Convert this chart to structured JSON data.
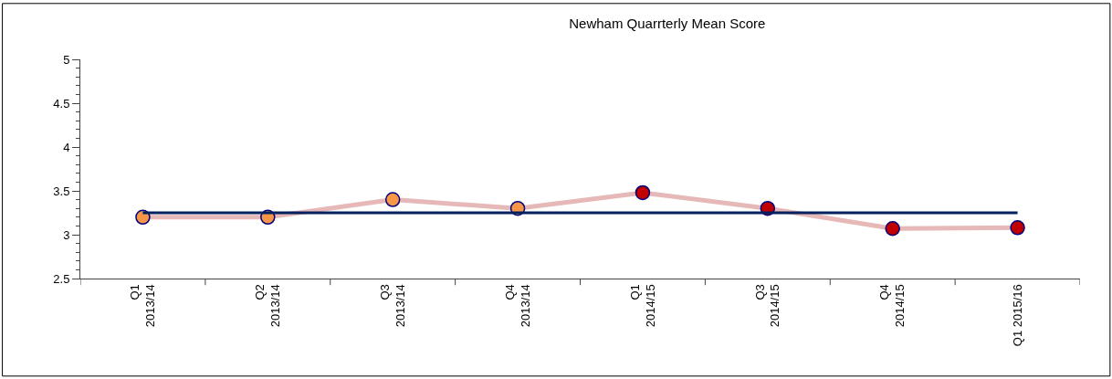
{
  "chart_data": {
    "type": "line",
    "title": "Newham Quarrterly Mean Score",
    "categories": [
      "Q1\n2013/14",
      "Q2\n2013/14",
      "Q3\n2013/14",
      "Q4\n2013/14",
      "Q1\n2014/15",
      "Q3\n2014/15",
      "Q4\n2014/15",
      "Q1 2015/16"
    ],
    "series": [
      {
        "color": "#e6b8b7",
        "values": [
          3.2,
          3.2,
          3.4,
          3.3,
          3.48,
          3.3,
          3.07,
          3.08
        ],
        "colors": [
          "#f79646",
          "#f79646",
          "#f79646",
          "#f79646",
          "#c00000",
          "#c00000",
          "#c00000",
          "#c00000"
        ]
      }
    ],
    "ref_lines": [
      {
        "axis": "y",
        "value": 3.25,
        "color": "#002060"
      }
    ],
    "ylim": [
      2.5,
      5
    ],
    "yticks": [
      2.5,
      3,
      3.5,
      4,
      4.5,
      5
    ],
    "marker": "circle"
  }
}
